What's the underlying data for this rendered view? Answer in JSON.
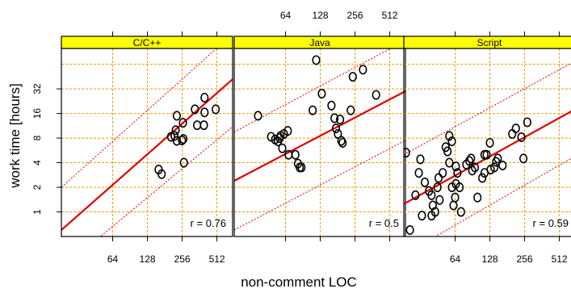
{
  "chart_data": {
    "type": "scatter",
    "x_scale": "log2",
    "y_scale": "log2",
    "xlabel": "non-comment LOC",
    "ylabel": "work time [hours]",
    "x_ticks": [
      64,
      128,
      256,
      512
    ],
    "y_ticks": [
      1,
      2,
      4,
      8,
      16,
      32
    ],
    "xlim": [
      23,
      700
    ],
    "ylim": [
      0.5,
      100
    ],
    "grid": true,
    "colors": {
      "strip": "#ffff00",
      "grid": "#e8a000",
      "regression": "#dd0000",
      "points": "#000000"
    },
    "panels": [
      {
        "label": "C/C++",
        "r_label": "r = 0.76",
        "points": [
          [
            160,
            3.3
          ],
          [
            170,
            2.9
          ],
          [
            230,
            7.4
          ],
          [
            220,
            8.5
          ],
          [
            205,
            8.3
          ],
          [
            225,
            10
          ],
          [
            230,
            15
          ],
          [
            260,
            12.3
          ],
          [
            255,
            7.5
          ],
          [
            262,
            7.8
          ],
          [
            265,
            4.0
          ],
          [
            330,
            18
          ],
          [
            345,
            11.5
          ],
          [
            400,
            25
          ],
          [
            395,
            11.5
          ],
          [
            400,
            16.5
          ],
          [
            500,
            18
          ]
        ],
        "fit": [
          [
            23,
            0.6
          ],
          [
            700,
            42
          ]
        ],
        "band_lo": [
          [
            23,
            0.2
          ],
          [
            700,
            11
          ]
        ],
        "band_hi": [
          [
            23,
            2.0
          ],
          [
            700,
            150
          ]
        ]
      },
      {
        "label": "Java",
        "r_label": "r = 0.5",
        "points": [
          [
            37,
            15
          ],
          [
            48,
            8.3
          ],
          [
            52,
            7.7
          ],
          [
            55,
            7.3
          ],
          [
            57,
            8.0
          ],
          [
            58,
            8.5
          ],
          [
            60,
            6.0
          ],
          [
            62,
            9.0
          ],
          [
            67,
            9.8
          ],
          [
            68,
            5.0
          ],
          [
            78,
            5.0
          ],
          [
            82,
            3.9
          ],
          [
            85,
            3.5
          ],
          [
            88,
            3.5
          ],
          [
            110,
            17.5
          ],
          [
            118,
            72
          ],
          [
            132,
            28
          ],
          [
            160,
            20
          ],
          [
            170,
            14
          ],
          [
            175,
            10.5
          ],
          [
            182,
            9.0
          ],
          [
            190,
            13.5
          ],
          [
            195,
            7.4
          ],
          [
            200,
            7.0
          ],
          [
            235,
            17.5
          ],
          [
            245,
            45
          ],
          [
            300,
            55
          ],
          [
            390,
            27
          ]
        ],
        "fit": [
          [
            23,
            2.4
          ],
          [
            700,
            30
          ]
        ],
        "band_lo": [
          [
            23,
            0.6
          ],
          [
            700,
            7.5
          ]
        ],
        "band_hi": [
          [
            23,
            9.5
          ],
          [
            700,
            125
          ]
        ]
      },
      {
        "label": "Script",
        "r_label": "r = 0.59",
        "points": [
          [
            24,
            5.3
          ],
          [
            26,
            0.6
          ],
          [
            29,
            1.6
          ],
          [
            31,
            3.0
          ],
          [
            32,
            4.4
          ],
          [
            33,
            0.9
          ],
          [
            35,
            2.3
          ],
          [
            38,
            1.8
          ],
          [
            40,
            0.9
          ],
          [
            40,
            1.6
          ],
          [
            41,
            1.2
          ],
          [
            43,
            1.0
          ],
          [
            45,
            2.0
          ],
          [
            46,
            2.6
          ],
          [
            47,
            1.4
          ],
          [
            50,
            3.0
          ],
          [
            53,
            6.2
          ],
          [
            55,
            5.5
          ],
          [
            57,
            8.5
          ],
          [
            57,
            4.0
          ],
          [
            60,
            7.3
          ],
          [
            60,
            2.0
          ],
          [
            62,
            1.2
          ],
          [
            64,
            1.5
          ],
          [
            65,
            2.2
          ],
          [
            65,
            3.6
          ],
          [
            67,
            3.0
          ],
          [
            70,
            2.0
          ],
          [
            72,
            1.0
          ],
          [
            80,
            3.8
          ],
          [
            85,
            4.2
          ],
          [
            88,
            4.5
          ],
          [
            90,
            3.2
          ],
          [
            95,
            3.5
          ],
          [
            100,
            1.5
          ],
          [
            110,
            2.6
          ],
          [
            115,
            3.0
          ],
          [
            115,
            5.0
          ],
          [
            120,
            5.0
          ],
          [
            128,
            7.0
          ],
          [
            130,
            3.3
          ],
          [
            140,
            3.5
          ],
          [
            145,
            4.1
          ],
          [
            150,
            4.5
          ],
          [
            165,
            3.7
          ],
          [
            200,
            9.0
          ],
          [
            215,
            10.5
          ],
          [
            240,
            8.2
          ],
          [
            250,
            4.5
          ],
          [
            270,
            12.5
          ]
        ],
        "fit": [
          [
            23,
            1.25
          ],
          [
            700,
            18
          ]
        ],
        "band_lo": [
          [
            23,
            0.3
          ],
          [
            700,
            4.8
          ]
        ],
        "band_hi": [
          [
            23,
            5.0
          ],
          [
            700,
            70
          ]
        ]
      }
    ]
  }
}
